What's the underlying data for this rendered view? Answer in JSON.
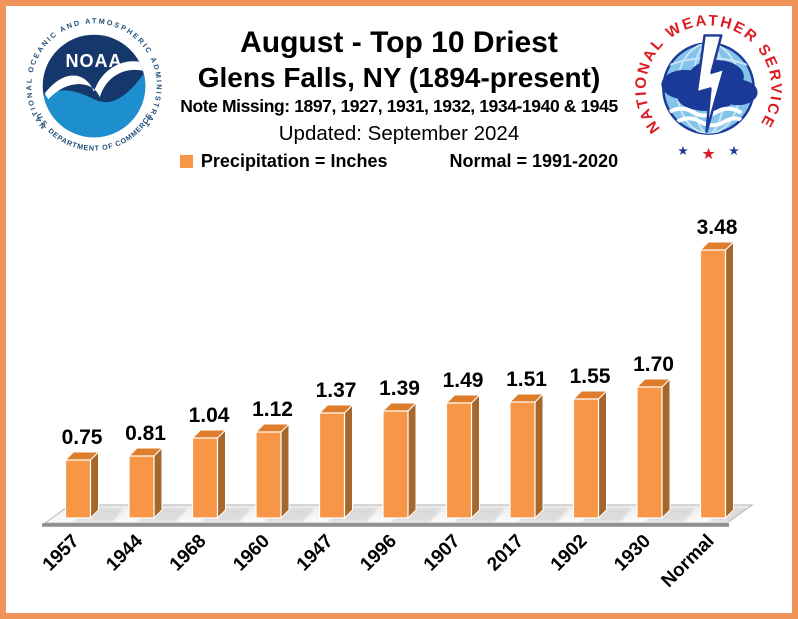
{
  "frame": {
    "border_color": "#F0945C",
    "background_color": "#FFFFFF"
  },
  "header": {
    "title": "August - Top 10 Driest",
    "subtitle": "Glens Falls, NY (1894-present)",
    "note": "Note Missing: 1897, 1927, 1931, 1932, 1934-1940 & 1945",
    "updated": "Updated: September 2024",
    "legend": {
      "marker_color": "#F79646",
      "precip_label": "Precipitation = Inches",
      "normal_label": "Normal = 1991-2020"
    }
  },
  "logos": {
    "noaa": {
      "ring_top_text": "NATIONAL OCEANIC AND ATMOSPHERIC ADMINISTRATION",
      "ring_bottom_text": "U.S. DEPARTMENT OF COMMERCE",
      "wordmark": "NOAA",
      "navy": "#16376C",
      "light_blue": "#1E8FCE",
      "ring_text_color": "#1E4E79"
    },
    "nws": {
      "ring_text": "NATIONAL WEATHER SERVICE",
      "red": "#DD1A21",
      "navy": "#1B3A97",
      "globe_blue": "#85C4EA",
      "stars": [
        "blue",
        "red",
        "blue"
      ]
    }
  },
  "chart_data": {
    "type": "bar",
    "style": "3d-column",
    "title": "August - Top 10 Driest",
    "subtitle": "Glens Falls, NY (1894-present)",
    "xlabel": "",
    "ylabel": "Precipitation (Inches)",
    "ylim": [
      0,
      3.6
    ],
    "grid": false,
    "legend_position": "top",
    "categories": [
      "1957",
      "1944",
      "1968",
      "1960",
      "1947",
      "1996",
      "1907",
      "2017",
      "1902",
      "1930",
      "Normal"
    ],
    "values": [
      0.75,
      0.81,
      1.04,
      1.12,
      1.37,
      1.39,
      1.49,
      1.51,
      1.55,
      1.7,
      3.48
    ],
    "value_labels": [
      "0.75",
      "0.81",
      "1.04",
      "1.12",
      "1.37",
      "1.39",
      "1.49",
      "1.51",
      "1.55",
      "1.70",
      "3.48"
    ],
    "units": "Inches",
    "bar_color_front": "#F79646",
    "bar_color_top": "#DE7E2D",
    "bar_color_side": "#A5672B",
    "edge_highlight": "#FFFFFF",
    "floor_line_color": "#8E8E8E"
  }
}
